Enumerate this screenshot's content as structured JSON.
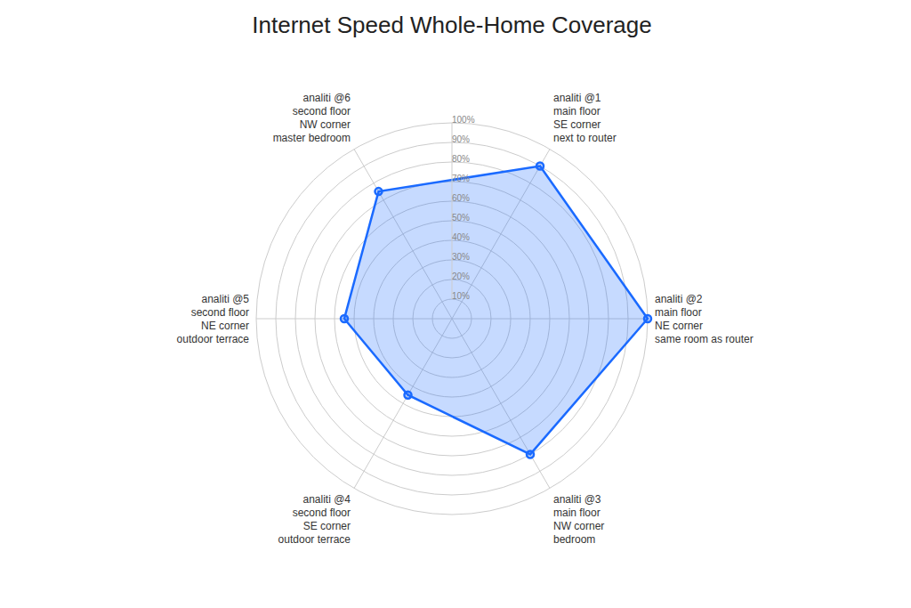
{
  "chart_data": {
    "type": "radar",
    "title": "Internet Speed Whole-Home Coverage",
    "categories": [
      "analiti @1\nmain floor\nSE corner\nnext to router",
      "analiti @2\nmain floor\nNE corner\nsame room as router",
      "analiti @3\nmain floor\nNW corner\nbedroom",
      "analiti @4\nsecond floor\nSE corner\noutdoor terrace",
      "analiti @5\nsecond floor\nNE corner\noutdoor terrace",
      "analiti @6\nsecond floor\nNW corner\nmaster bedroom"
    ],
    "values": [
      0.9,
      1.0,
      0.8,
      0.45,
      0.55,
      0.75
    ],
    "color": "#1a6aff",
    "marker": "circle",
    "grid": true,
    "ylim": [
      0,
      1.0
    ],
    "yticks": [
      {
        "value": 0.1,
        "label": "10%"
      },
      {
        "value": 0.2,
        "label": "20%"
      },
      {
        "value": 0.3,
        "label": "30%"
      },
      {
        "value": 0.4,
        "label": "40%"
      },
      {
        "value": 0.5,
        "label": "50%"
      },
      {
        "value": 0.6,
        "label": "60%"
      },
      {
        "value": 0.7,
        "label": "70%"
      },
      {
        "value": 0.8,
        "label": "80%"
      },
      {
        "value": 0.9,
        "label": "90%"
      },
      {
        "value": 1.0,
        "label": "100%"
      }
    ]
  }
}
